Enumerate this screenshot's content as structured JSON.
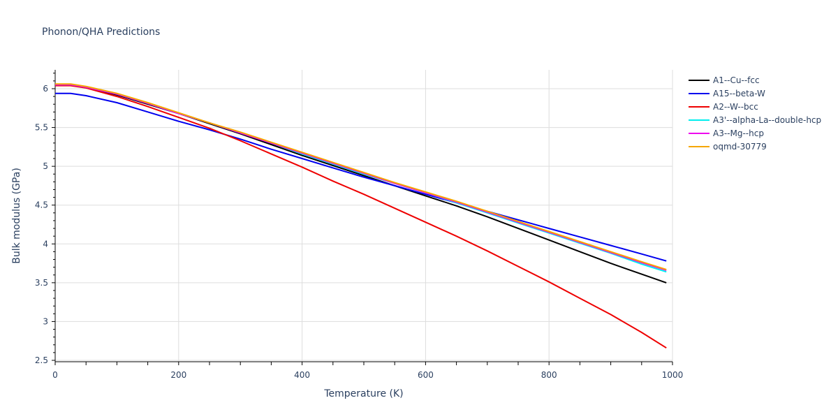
{
  "chart_data": {
    "type": "line",
    "title": "Phonon/QHA Predictions",
    "xlabel": "Temperature (K)",
    "ylabel": "Bulk modulus (GPa)",
    "xlim": [
      0,
      1000
    ],
    "ylim": [
      2.47,
      6.25
    ],
    "xticks": [
      0,
      200,
      400,
      600,
      800,
      1000
    ],
    "xtick_labels": [
      "0",
      "200",
      "400",
      "600",
      "800",
      "1000"
    ],
    "yticks": [
      2.5,
      3,
      3.5,
      4,
      4.5,
      5,
      5.5,
      6
    ],
    "ytick_labels": [
      "2.5",
      "3",
      "3.5",
      "4",
      "4.5",
      "5",
      "5.5",
      "6"
    ],
    "grid": true,
    "legend_position": "right",
    "x": [
      0,
      25,
      50,
      100,
      150,
      200,
      250,
      300,
      350,
      400,
      450,
      500,
      550,
      600,
      650,
      700,
      750,
      800,
      850,
      900,
      950,
      990
    ],
    "series": [
      {
        "name": "A1--Cu--fcc",
        "color": "#000000",
        "values": [
          6.05,
          6.05,
          6.02,
          5.92,
          5.8,
          5.68,
          5.55,
          5.42,
          5.28,
          5.14,
          5.01,
          4.88,
          4.75,
          4.62,
          4.49,
          4.35,
          4.2,
          4.05,
          3.9,
          3.75,
          3.61,
          3.5
        ]
      },
      {
        "name": "A15--beta-W",
        "color": "#0000ee",
        "values": [
          5.94,
          5.94,
          5.91,
          5.82,
          5.7,
          5.58,
          5.47,
          5.35,
          5.22,
          5.1,
          4.98,
          4.86,
          4.75,
          4.64,
          4.53,
          4.42,
          4.31,
          4.2,
          4.09,
          3.98,
          3.87,
          3.78
        ]
      },
      {
        "name": "A2--W--bcc",
        "color": "#ee0000",
        "values": [
          6.04,
          6.04,
          6.01,
          5.9,
          5.77,
          5.63,
          5.49,
          5.33,
          5.16,
          4.99,
          4.81,
          4.64,
          4.46,
          4.28,
          4.1,
          3.91,
          3.71,
          3.51,
          3.3,
          3.09,
          2.86,
          2.66
        ]
      },
      {
        "name": "A3'--alpha-La--double-hcp",
        "color": "#00eeee",
        "values": [
          6.05,
          6.05,
          6.02,
          5.93,
          5.81,
          5.68,
          5.56,
          5.43,
          5.3,
          5.16,
          5.03,
          4.9,
          4.78,
          4.66,
          4.53,
          4.4,
          4.27,
          4.14,
          4.01,
          3.88,
          3.74,
          3.64
        ]
      },
      {
        "name": "A3--Mg--hcp",
        "color": "#ee00ee",
        "values": [
          6.05,
          6.05,
          6.02,
          5.93,
          5.81,
          5.68,
          5.56,
          5.43,
          5.3,
          5.17,
          5.04,
          4.91,
          4.78,
          4.66,
          4.54,
          4.41,
          4.28,
          4.15,
          4.02,
          3.89,
          3.76,
          3.66
        ]
      },
      {
        "name": "oqmd-30779",
        "color": "#f5a700",
        "values": [
          6.06,
          6.06,
          6.03,
          5.94,
          5.82,
          5.69,
          5.56,
          5.44,
          5.31,
          5.18,
          5.05,
          4.92,
          4.79,
          4.67,
          4.55,
          4.42,
          4.29,
          4.16,
          4.03,
          3.9,
          3.77,
          3.67
        ]
      }
    ]
  }
}
